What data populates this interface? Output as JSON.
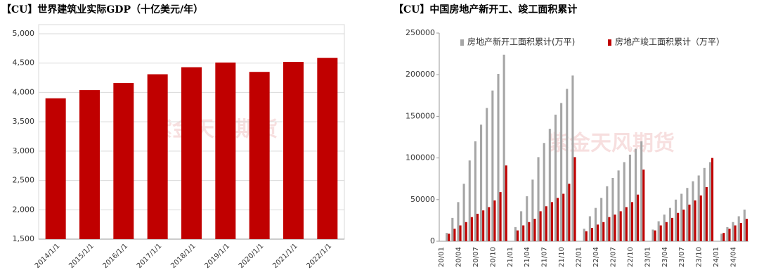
{
  "chart_data": [
    {
      "type": "bar",
      "title": "【CU】世界建筑业实际GDP（十亿美元/年）",
      "categories": [
        "2014/1/1",
        "2015/1/1",
        "2016/1/1",
        "2017/1/1",
        "2018/1/1",
        "2019/1/1",
        "2020/1/1",
        "2021/1/1",
        "2022/1/1"
      ],
      "values": [
        3900,
        4040,
        4160,
        4310,
        4430,
        4510,
        4350,
        4520,
        4590
      ],
      "color": "#c00000",
      "ylim": [
        1500,
        5000
      ],
      "yticks": [
        {
          "value": 1500,
          "label": "1,500"
        },
        {
          "value": 2000,
          "label": "2,000"
        },
        {
          "value": 2500,
          "label": "2,500"
        },
        {
          "value": 3000,
          "label": "3,000"
        },
        {
          "value": 3500,
          "label": "3,500"
        },
        {
          "value": 4000,
          "label": "4,000"
        },
        {
          "value": 4500,
          "label": "4,500"
        },
        {
          "value": 5000,
          "label": "5,000"
        }
      ],
      "grid": true,
      "watermark": "紫金天风期货"
    },
    {
      "type": "grouped-bar",
      "title": "【CU】中国房地产新开工、竣工面积累计",
      "categories": [
        "20/01",
        null,
        null,
        "20/04",
        null,
        null,
        "20/07",
        null,
        null,
        "20/10",
        null,
        null,
        "21/01",
        null,
        null,
        "21/04",
        null,
        null,
        "21/07",
        null,
        null,
        "21/10",
        null,
        null,
        "22/01",
        null,
        null,
        "22/04",
        null,
        null,
        "22/07",
        null,
        null,
        "22/10",
        null,
        null,
        "23/01",
        null,
        null,
        "23/04",
        null,
        null,
        "23/07",
        null,
        null,
        "23/10",
        null,
        null,
        "24/01",
        null,
        null,
        "24/04",
        null,
        null
      ],
      "series": [
        {
          "name": "房地产新开工面积累计(万平)",
          "color": "#a6a6a6",
          "values": [
            null,
            10000,
            28000,
            47000,
            69000,
            97000,
            120000,
            140000,
            160000,
            181000,
            201000,
            224000,
            null,
            17000,
            36000,
            54000,
            74000,
            101000,
            118000,
            135000,
            152000,
            166000,
            183000,
            199000,
            null,
            15000,
            30000,
            40000,
            52000,
            66000,
            76000,
            85000,
            95000,
            104000,
            111000,
            120000,
            null,
            14000,
            24000,
            32000,
            40000,
            50000,
            57000,
            64000,
            72000,
            79000,
            88000,
            95000,
            null,
            9000,
            17000,
            23000,
            30000,
            38000
          ]
        },
        {
          "name": "房地产竣工面积累计（万平）",
          "color": "#c00000",
          "values": [
            null,
            9000,
            15000,
            19000,
            23000,
            29000,
            33000,
            37000,
            41000,
            49000,
            59000,
            91000,
            null,
            13000,
            19000,
            23000,
            27000,
            36000,
            42000,
            47000,
            52000,
            57000,
            69000,
            101000,
            null,
            12000,
            16000,
            20000,
            23000,
            29000,
            32000,
            36000,
            41000,
            47000,
            56000,
            86000,
            null,
            13000,
            19000,
            23000,
            28000,
            34000,
            38000,
            44000,
            49000,
            55000,
            65000,
            100000,
            null,
            10000,
            15000,
            19000,
            22000,
            27000
          ]
        }
      ],
      "ylim": [
        0,
        250000
      ],
      "yticks": [
        0,
        50000,
        100000,
        150000,
        200000,
        250000
      ],
      "grid": false,
      "legend": "top",
      "watermark": "紫金天风期货"
    }
  ]
}
